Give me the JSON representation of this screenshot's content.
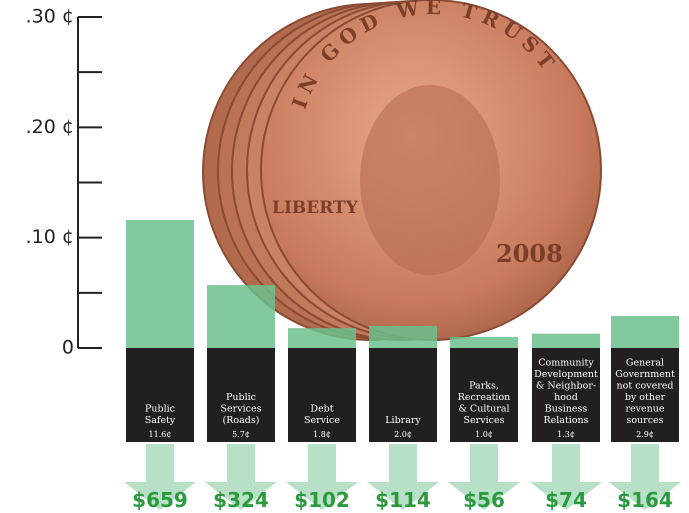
{
  "chart_data": {
    "type": "bar",
    "categories": [
      [
        "Public",
        "Safety"
      ],
      [
        "Public",
        "Services",
        "(Roads)"
      ],
      [
        "Debt",
        "Service"
      ],
      [
        "Library"
      ],
      [
        "Parks,",
        "Recreation",
        "& Cultural",
        "Services"
      ],
      [
        "Community",
        "Development",
        "& Neighbor-",
        "hood",
        "Business",
        "Relations"
      ],
      [
        "General",
        "Government",
        "not covered",
        "by other",
        "revenue",
        "sources"
      ]
    ],
    "values": [
      11.6,
      5.7,
      1.8,
      2.0,
      1.0,
      1.3,
      2.9
    ],
    "value_labels": [
      "11.6¢",
      "5.7¢",
      "1.8¢",
      "2.0¢",
      "1.0¢",
      "1.3¢",
      "2.9¢"
    ],
    "amounts": [
      "$659",
      "$324",
      "$102",
      "$114",
      "$56",
      "$74",
      "$164"
    ],
    "color": "#6cc08d",
    "ylim": [
      0,
      30
    ],
    "yticks": [
      {
        "value": 0,
        "label": "0"
      },
      {
        "value": 10,
        "label": ".10 ¢"
      },
      {
        "value": 20,
        "label": ".20 ¢"
      },
      {
        "value": 30,
        "label": ".30 ¢"
      }
    ],
    "minor_yticks": [
      5,
      15,
      25
    ]
  },
  "penny": {
    "motto": "IN GOD WE TRUST",
    "liberty": "LIBERTY",
    "year": "2008"
  }
}
